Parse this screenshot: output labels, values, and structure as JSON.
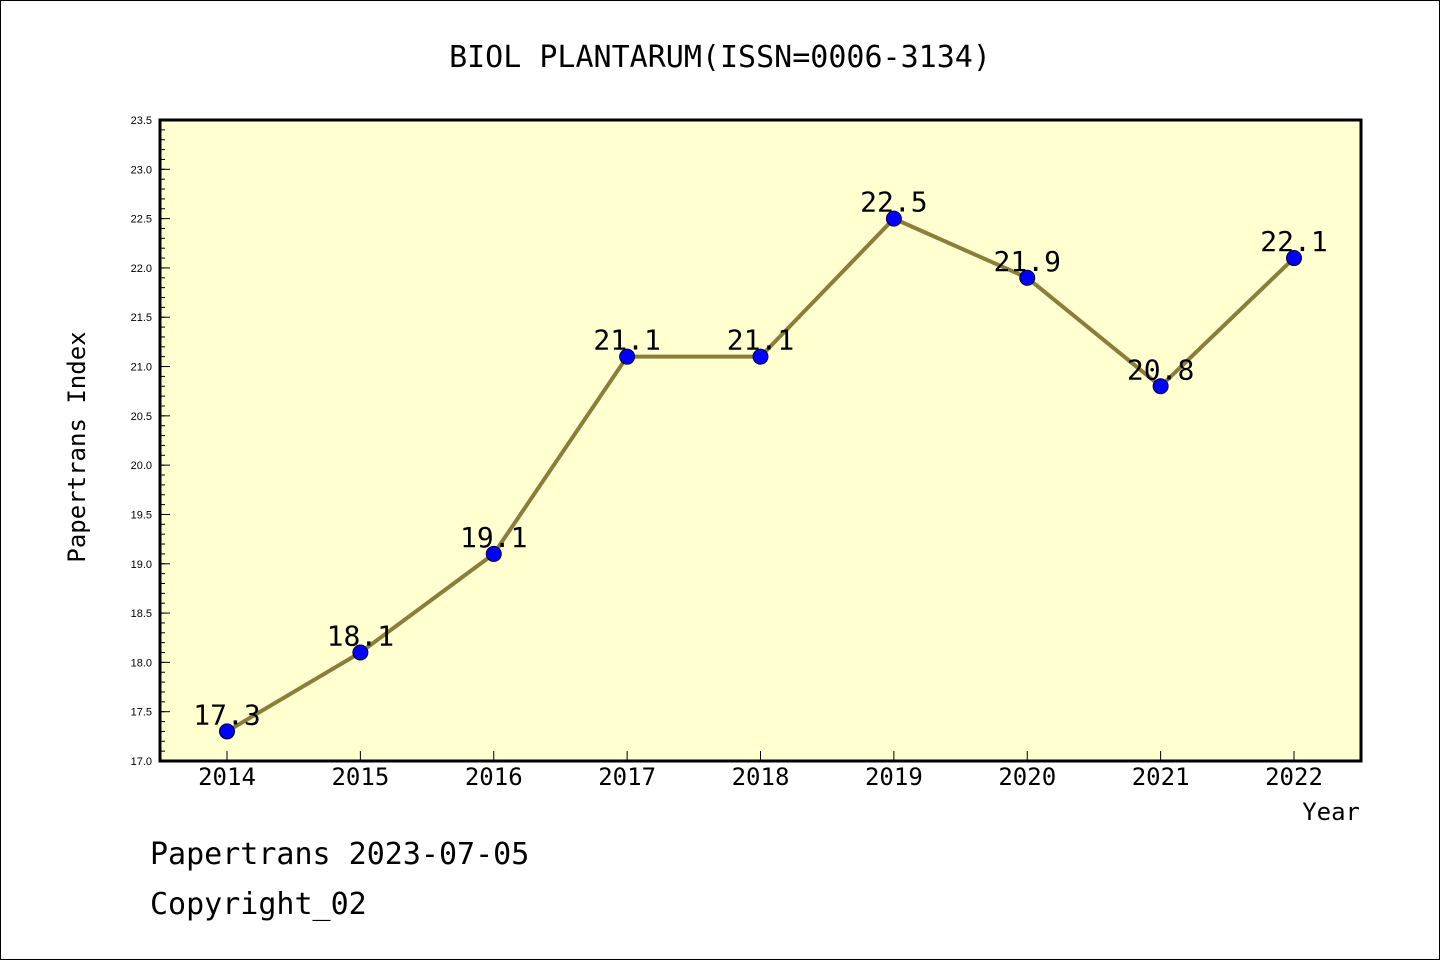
{
  "chart_data": {
    "type": "line",
    "title": "BIOL PLANTARUM(ISSN=0006-3134)",
    "xlabel": "Year",
    "ylabel": "Papertrans Index",
    "x": [
      2014,
      2015,
      2016,
      2017,
      2018,
      2019,
      2020,
      2021,
      2022
    ],
    "series": [
      {
        "values": [
          17.3,
          18.1,
          19.1,
          21.1,
          21.1,
          22.5,
          21.9,
          20.8,
          22.1
        ],
        "value_labels": [
          "17.3",
          "18.1",
          "19.1",
          "21.1",
          "21.1",
          "22.5",
          "21.9",
          "20.8",
          "22.1"
        ],
        "line_color": "#8b7d3a",
        "marker_color": "#0000ff"
      }
    ],
    "ylim": [
      17.0,
      23.5
    ],
    "yticks": [
      "17.0",
      "17.5",
      "18.0",
      "18.5",
      "19.0",
      "19.5",
      "20.0",
      "20.5",
      "21.0",
      "21.5",
      "22.0",
      "22.5",
      "23.0",
      "23.5"
    ],
    "plot_background": "#ffffd0",
    "grid": false,
    "legend": "none"
  },
  "footer": {
    "line1": "Papertrans 2023-07-05",
    "line2": "Copyright_02"
  }
}
